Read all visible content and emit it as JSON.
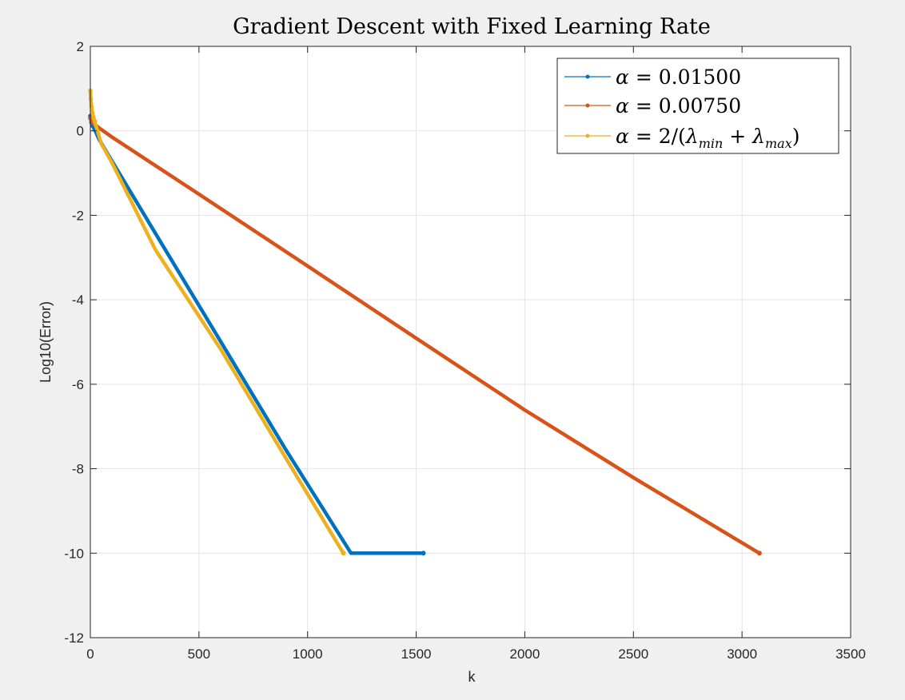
{
  "chart_data": {
    "type": "line",
    "title": "Gradient Descent with Fixed Learning Rate",
    "xlabel": "k",
    "ylabel": "Log10(Error)",
    "xlim": [
      0,
      3500
    ],
    "ylim": [
      -12,
      2
    ],
    "xticks": [
      0,
      500,
      1000,
      1500,
      2000,
      2500,
      3000,
      3500
    ],
    "yticks": [
      -12,
      -10,
      -8,
      -6,
      -4,
      -2,
      0,
      2
    ],
    "grid": true,
    "legend_position": "top-right",
    "series": [
      {
        "name": "α = 0.01500",
        "color": "#0072BD",
        "x": [
          0,
          5,
          10,
          20,
          40,
          100,
          300,
          600,
          900,
          1200,
          1533
        ],
        "y": [
          0.35,
          0.2,
          0.12,
          0.03,
          -0.2,
          -0.72,
          -2.43,
          -4.99,
          -7.55,
          -10.0,
          -10.0
        ]
      },
      {
        "name": "α = 0.00750",
        "color": "#D95319",
        "x": [
          0,
          5,
          10,
          20,
          40,
          100,
          500,
          1000,
          1500,
          2000,
          2500,
          3080
        ],
        "y": [
          0.3,
          0.25,
          0.2,
          0.15,
          0.07,
          -0.15,
          -1.5,
          -3.2,
          -4.91,
          -6.61,
          -8.21,
          -10.0
        ]
      },
      {
        "name": "α = 2/(λmin + λmax)",
        "color": "#EDB120",
        "x": [
          0,
          2,
          5,
          10,
          15,
          20,
          30,
          50,
          100,
          300,
          600,
          900,
          1165
        ],
        "y": [
          0.95,
          0.75,
          0.58,
          0.42,
          0.3,
          0.22,
          0.05,
          -0.3,
          -0.76,
          -2.82,
          -5.17,
          -7.75,
          -10.0
        ]
      }
    ],
    "legend": {
      "entries": [
        {
          "prefix": "α",
          "eq": " = ",
          "value": "0.01500"
        },
        {
          "prefix": "α",
          "eq": " = ",
          "value": "0.00750"
        },
        {
          "prefix": "α",
          "eq": " = 2/(",
          "lam1": "λ",
          "sub1": "min",
          "plus": " + ",
          "lam2": "λ",
          "sub2": "max",
          "close": ")"
        }
      ]
    }
  }
}
